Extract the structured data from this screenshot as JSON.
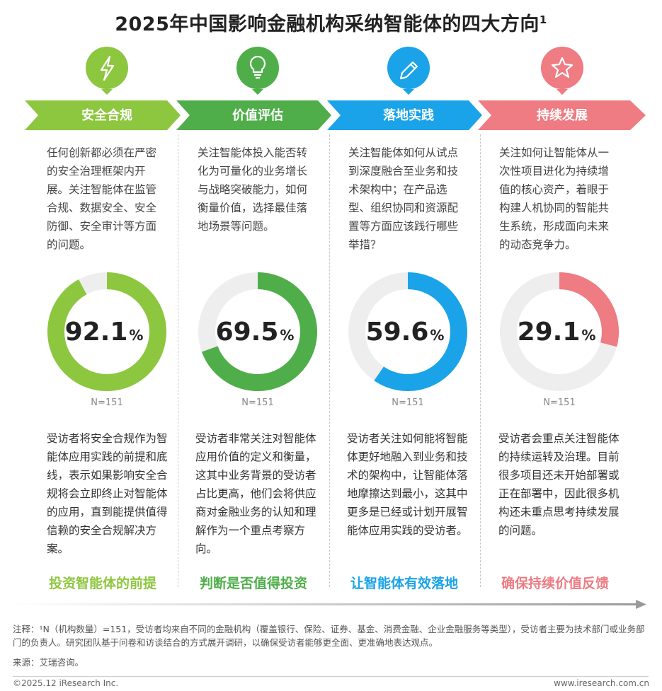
{
  "title": "2025年中国影响金融机构采纳智能体的四大方向",
  "title_sup": "1",
  "colors": {
    "green_light": "#8dc63f",
    "green_dark": "#4fae4a",
    "blue": "#1aa3e8",
    "pink": "#ef7b83",
    "track": "#eeeeee"
  },
  "columns": [
    {
      "icon": "lightning-icon",
      "label": "安全合规",
      "desc": "任何创新都必须在严密的安全治理框架内开展。关注智能体在监管合规、数据安全、安全防御、安全审计等方面的问题。",
      "value_text": "92.1",
      "unit": "%",
      "n": "N=151",
      "finding": "受访者将安全合规作为智能体应用实践的前提和底线，表示如果影响安全合规将会立即终止对智能体的应用，直到能提供值得信赖的安全合规解决方案。",
      "takeaway": "投资智能体的前提"
    },
    {
      "icon": "lightbulb-icon",
      "label": "价值评估",
      "desc": "关注智能体投入能否转化为可量化的业务增长与战略突破能力，如何衡量价值，选择最佳落地场景等问题。",
      "value_text": "69.5",
      "unit": "%",
      "n": "N=151",
      "finding": "受访者非常关注对智能体应用价值的定义和衡量，这其中业务背景的受访者占比更高，他们会将供应商对金融业务的认知和理解作为一个重点考察方向。",
      "takeaway": "判断是否值得投资"
    },
    {
      "icon": "pencil-icon",
      "label": "落地实践",
      "desc": "关注智能体如何从试点到深度融合至业务和技术架构中；在产品选型、组织协同和资源配置等方面应该践行哪些举措？",
      "value_text": "59.6",
      "unit": "%",
      "n": "N=151",
      "finding": "受访者关注如何能将智能体更好地融入到业务和技术的架构中，让智能体落地摩擦达到最小，这其中更多是已经或计划开展智能体应用实践的受访者。",
      "takeaway": "让智能体有效落地"
    },
    {
      "icon": "star-icon",
      "label": "持续发展",
      "desc": "关注如何让智能体从一次性项目进化为持续增值的核心资产，着眼于构建人机协同的智能共生系统，形成面向未来的动态竞争力。",
      "value_text": "29.1",
      "unit": "%",
      "n": "N=151",
      "finding": "受访者会重点关注智能体的持续运转及治理。目前很多项目还未开始部署或正在部署中，因此很多机构还未重点思考持续发展的问题。",
      "takeaway": "确保持续价值反馈"
    }
  ],
  "chart_data": {
    "type": "pie",
    "categories": [
      "安全合规",
      "价值评估",
      "落地实践",
      "持续发展"
    ],
    "values": [
      92.1,
      69.5,
      59.6,
      29.1
    ],
    "unit": "%",
    "n": "N=151",
    "title": "2025年中国影响金融机构采纳智能体的四大方向"
  },
  "notes": {
    "line1": "注释：¹N（机构数量）=151，受访者均来自不同的金融机构（覆盖银行、保险、证券、基金、消费金融、企业金融服务等类型），受访者主要为技术部门或业务部门的负责人。研究团队基于问卷和访谈结合的方式展开调研，以确保受访者能够更全面、更准确地表达观点。",
    "source": "来源：艾瑞咨询。"
  },
  "footer": {
    "left": "©2025.12 iResearch Inc.",
    "right": "www.iresearch.com.cn"
  }
}
